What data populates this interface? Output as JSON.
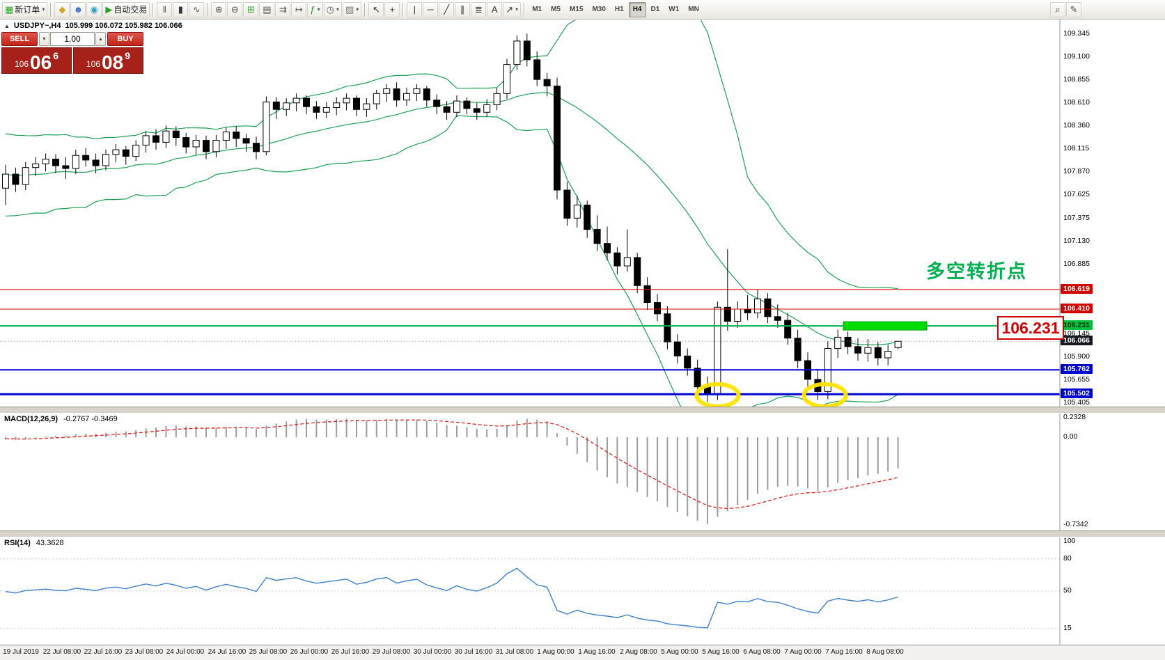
{
  "toolbar": {
    "dropdown_glyph": "▾",
    "timeframes": [
      "M1",
      "M5",
      "M15",
      "M30",
      "H1",
      "H4",
      "D1",
      "W1",
      "MN"
    ],
    "active_timeframe": "H4",
    "items": [
      {
        "type": "btn",
        "n": "new-order",
        "g": "▦",
        "c": "#2e9e2e",
        "label": "新订单",
        "dd": true
      },
      {
        "type": "sep"
      },
      {
        "type": "btn",
        "n": "metaeditor",
        "g": "◆",
        "c": "#d9a31f"
      },
      {
        "type": "btn",
        "n": "community",
        "g": "☻",
        "c": "#3b6fd6"
      },
      {
        "type": "btn",
        "n": "news",
        "g": "◉",
        "c": "#2a9fbf"
      },
      {
        "type": "btn",
        "n": "autotrading",
        "g": "▶",
        "c": "#27a327",
        "label": "自动交易"
      },
      {
        "type": "sep"
      },
      {
        "type": "btn",
        "n": "bar-chart",
        "g": "‖",
        "c": "#555"
      },
      {
        "type": "btn",
        "n": "candlestick-chart",
        "g": "▮",
        "c": "#333"
      },
      {
        "type": "btn",
        "n": "line-chart",
        "g": "∿",
        "c": "#555"
      },
      {
        "type": "sep"
      },
      {
        "type": "btn",
        "n": "zoom-in",
        "g": "⊕",
        "c": "#555"
      },
      {
        "type": "btn",
        "n": "zoom-out",
        "g": "⊖",
        "c": "#555"
      },
      {
        "type": "btn",
        "n": "grid",
        "g": "⊞",
        "c": "#3f9e3f"
      },
      {
        "type": "btn",
        "n": "tile-windows",
        "g": "▤",
        "c": "#555"
      },
      {
        "type": "btn",
        "n": "auto-scroll",
        "g": "⇉",
        "c": "#555"
      },
      {
        "type": "btn",
        "n": "chart-shift",
        "g": "↦",
        "c": "#555"
      },
      {
        "type": "btn",
        "n": "indicators",
        "g": "ƒ",
        "c": "#2e8b2e",
        "dd": true
      },
      {
        "type": "btn",
        "n": "periods",
        "g": "◷",
        "c": "#555",
        "dd": true
      },
      {
        "type": "btn",
        "n": "templates",
        "g": "▨",
        "c": "#777",
        "dd": true
      },
      {
        "type": "sep"
      },
      {
        "type": "btn",
        "n": "cursor",
        "g": "↖",
        "c": "#333"
      },
      {
        "type": "btn",
        "n": "crosshair",
        "g": "+",
        "c": "#333"
      },
      {
        "type": "sep"
      },
      {
        "type": "btn",
        "n": "vertical-line",
        "g": "|",
        "c": "#333"
      },
      {
        "type": "btn",
        "n": "horizontal-line",
        "g": "─",
        "c": "#333"
      },
      {
        "type": "btn",
        "n": "trendline",
        "g": "╱",
        "c": "#333"
      },
      {
        "type": "btn",
        "n": "equidistant-channel",
        "g": "∥",
        "c": "#333"
      },
      {
        "type": "btn",
        "n": "fibonacci",
        "g": "≣",
        "c": "#333"
      },
      {
        "type": "btn",
        "n": "text-label",
        "g": "A",
        "c": "#333"
      },
      {
        "type": "btn",
        "n": "arrows",
        "g": "↗",
        "c": "#333",
        "dd": true
      },
      {
        "type": "sep"
      },
      {
        "type": "tf"
      },
      {
        "type": "spacer"
      },
      {
        "type": "btn",
        "n": "search",
        "g": "⌕",
        "c": "#444"
      },
      {
        "type": "btn",
        "n": "edit",
        "g": "✎",
        "c": "#444"
      },
      {
        "type": "pad"
      }
    ]
  },
  "chart": {
    "collapse_glyph": "▲",
    "symbol_period": "USDJPY~,H4",
    "ohlc_text": "105.999 106.072 105.982 106.066"
  },
  "quote_panel": {
    "sell_label": "SELL",
    "buy_label": "BUY",
    "volume": "1.00",
    "spinner_down_glyph": "▼",
    "spinner_up_glyph": "▲",
    "sell_big_figure": "106",
    "sell_pips": "06",
    "sell_pip_fraction": "6",
    "buy_big_figure": "106",
    "buy_pips": "08",
    "buy_pip_fraction": "9"
  },
  "annotations": {
    "turning_point": "多空转折点",
    "price_callout": "106.231"
  },
  "overlays": {
    "hlines": [
      {
        "value": 106.619,
        "label": "106.619",
        "color": "#e10000",
        "width": 1,
        "badge_bg": "#d40000",
        "badge_fg": "#ffffff"
      },
      {
        "value": 106.41,
        "label": "106.410",
        "color": "#e10000",
        "width": 1,
        "badge_bg": "#d40000",
        "badge_fg": "#ffffff"
      },
      {
        "value": 106.231,
        "label": "106.231",
        "color": "#00b050",
        "width": 2,
        "badge_bg": "#00c040",
        "badge_fg": "#063306"
      },
      {
        "value": 105.762,
        "label": "105.762",
        "color": "#0000d0",
        "width": 2,
        "badge_bg": "#0000cc",
        "badge_fg": "#ffffff"
      },
      {
        "value": 105.502,
        "label": "105.502",
        "color": "#0000d0",
        "width": 3,
        "badge_bg": "#0000cc",
        "badge_fg": "#ffffff"
      }
    ],
    "current_price": {
      "value": 106.066,
      "label": "106.066",
      "badge_bg": "#17171f",
      "badge_fg": "#ffffff"
    },
    "highlight_rect": {
      "price": 106.231,
      "color": "#00dc00"
    },
    "ellipses": [
      {
        "index": 71,
        "price": 105.49,
        "color": "#ffe400"
      },
      {
        "index": 81.7,
        "price": 105.49,
        "color": "#ffe400"
      }
    ]
  },
  "price_axis": {
    "labels": [
      {
        "text": "109.345",
        "value": 109.345
      },
      {
        "text": "109.100",
        "value": 109.1
      },
      {
        "text": "108.855",
        "value": 108.855
      },
      {
        "text": "108.610",
        "value": 108.61
      },
      {
        "text": "108.360",
        "value": 108.36
      },
      {
        "text": "108.115",
        "value": 108.115
      },
      {
        "text": "107.870",
        "value": 107.87
      },
      {
        "text": "107.625",
        "value": 107.625
      },
      {
        "text": "107.375",
        "value": 107.375
      },
      {
        "text": "107.130",
        "value": 107.13
      },
      {
        "text": "106.885",
        "value": 106.885
      },
      {
        "text": "106.145",
        "value": 106.145
      },
      {
        "text": "105.900",
        "value": 105.9
      },
      {
        "text": "105.655",
        "value": 105.655
      },
      {
        "text": "105.405",
        "value": 105.405
      }
    ]
  },
  "time_axis": {
    "labels": [
      "19 Jul 2019",
      "22 Jul 08:00",
      "22 Jul 16:00",
      "23 Jul 08:00",
      "24 Jul 00:00",
      "24 Jul 16:00",
      "25 Jul 08:00",
      "26 Jul 00:00",
      "26 Jul 16:00",
      "29 Jul 08:00",
      "30 Jul 00:00",
      "30 Jul 16:00",
      "31 Jul 08:00",
      "1 Aug 00:00",
      "1 Aug 16:00",
      "2 Aug 08:00",
      "5 Aug 00:00",
      "5 Aug 16:00",
      "6 Aug 08:00",
      "7 Aug 00:00",
      "7 Aug 16:00",
      "8 Aug 08:00"
    ]
  },
  "macd": {
    "label": "MACD(12,26,9)",
    "values_text": "-0.2767 -0.3469",
    "axis_labels": [
      "0.2328",
      "0.00",
      "-0.7342"
    ]
  },
  "rsi": {
    "label": "RSI(14)",
    "value_text": "43.3628",
    "axis_labels": [
      {
        "text": "100",
        "value": 100
      },
      {
        "text": "80",
        "value": 80
      },
      {
        "text": "50",
        "value": 50
      },
      {
        "text": "15",
        "value": 15
      }
    ],
    "levels": [
      80,
      50,
      15
    ]
  },
  "chart_data": {
    "type": "candlestick",
    "symbol": "USDJPY",
    "timeframe": "H4",
    "ohlc_current": {
      "open": 105.999,
      "high": 106.072,
      "low": 105.982,
      "close": 106.066
    },
    "bid": 106.066,
    "ask": 106.089,
    "price_range_visible": [
      105.37,
      109.47
    ],
    "indicators": {
      "bollinger_period": 20,
      "bollinger_deviation": 2,
      "macd": [
        12,
        26,
        9
      ],
      "rsi_period": 14
    },
    "pre_closes": [
      107.9,
      107.55,
      107.8,
      108.2,
      108.0,
      107.5,
      107.7,
      108.1,
      107.85,
      107.6,
      108.05,
      108.25,
      107.8,
      107.55,
      107.9,
      107.72
    ],
    "candles": [
      [
        107.7,
        107.95,
        107.52,
        107.85
      ],
      [
        107.85,
        107.92,
        107.66,
        107.74
      ],
      [
        107.74,
        107.98,
        107.68,
        107.92
      ],
      [
        107.92,
        108.03,
        107.83,
        107.96
      ],
      [
        107.96,
        108.07,
        107.88,
        108.01
      ],
      [
        108.01,
        108.06,
        107.86,
        107.94
      ],
      [
        107.94,
        108.03,
        107.8,
        107.91
      ],
      [
        107.91,
        108.11,
        107.85,
        108.05
      ],
      [
        108.05,
        108.13,
        107.93,
        108.0
      ],
      [
        108.0,
        108.07,
        107.86,
        107.94
      ],
      [
        107.94,
        108.11,
        107.89,
        108.06
      ],
      [
        108.06,
        108.17,
        107.98,
        108.11
      ],
      [
        108.11,
        108.15,
        107.95,
        108.04
      ],
      [
        108.04,
        108.21,
        107.99,
        108.16
      ],
      [
        108.16,
        108.31,
        108.08,
        108.26
      ],
      [
        108.26,
        108.33,
        108.11,
        108.19
      ],
      [
        108.19,
        108.37,
        108.13,
        108.31
      ],
      [
        108.31,
        108.36,
        108.15,
        108.24
      ],
      [
        108.24,
        108.29,
        108.07,
        108.14
      ],
      [
        108.14,
        108.27,
        108.06,
        108.21
      ],
      [
        108.21,
        108.26,
        108.01,
        108.09
      ],
      [
        108.09,
        108.27,
        108.03,
        108.21
      ],
      [
        108.21,
        108.35,
        108.12,
        108.3
      ],
      [
        108.3,
        108.36,
        108.14,
        108.23
      ],
      [
        108.23,
        108.28,
        108.09,
        108.18
      ],
      [
        108.18,
        108.25,
        108.01,
        108.09
      ],
      [
        108.09,
        108.68,
        108.05,
        108.62
      ],
      [
        108.62,
        108.67,
        108.44,
        108.54
      ],
      [
        108.54,
        108.66,
        108.47,
        108.61
      ],
      [
        108.61,
        108.71,
        108.52,
        108.66
      ],
      [
        108.66,
        108.69,
        108.49,
        108.57
      ],
      [
        108.57,
        108.63,
        108.44,
        108.51
      ],
      [
        108.51,
        108.62,
        108.45,
        108.56
      ],
      [
        108.56,
        108.67,
        108.48,
        108.61
      ],
      [
        108.61,
        108.71,
        108.53,
        108.66
      ],
      [
        108.66,
        108.69,
        108.47,
        108.54
      ],
      [
        108.54,
        108.66,
        108.46,
        108.6
      ],
      [
        108.6,
        108.75,
        108.54,
        108.71
      ],
      [
        108.71,
        108.81,
        108.62,
        108.76
      ],
      [
        108.76,
        108.83,
        108.57,
        108.64
      ],
      [
        108.64,
        108.77,
        108.58,
        108.71
      ],
      [
        108.71,
        108.81,
        108.63,
        108.76
      ],
      [
        108.76,
        108.79,
        108.57,
        108.64
      ],
      [
        108.64,
        108.7,
        108.49,
        108.57
      ],
      [
        108.57,
        108.63,
        108.43,
        108.51
      ],
      [
        108.51,
        108.69,
        108.46,
        108.63
      ],
      [
        108.63,
        108.67,
        108.49,
        108.55
      ],
      [
        108.55,
        108.61,
        108.43,
        108.51
      ],
      [
        108.51,
        108.65,
        108.46,
        108.59
      ],
      [
        108.59,
        108.77,
        108.53,
        108.71
      ],
      [
        108.71,
        109.08,
        108.65,
        109.02
      ],
      [
        109.02,
        109.33,
        108.96,
        109.27
      ],
      [
        109.27,
        109.35,
        109.0,
        109.07
      ],
      [
        109.07,
        109.16,
        108.79,
        108.86
      ],
      [
        108.86,
        108.93,
        108.68,
        108.79
      ],
      [
        108.79,
        108.88,
        107.58,
        107.68
      ],
      [
        107.68,
        107.77,
        107.3,
        107.38
      ],
      [
        107.38,
        107.62,
        107.28,
        107.52
      ],
      [
        107.52,
        107.57,
        107.17,
        107.26
      ],
      [
        107.26,
        107.41,
        107.03,
        107.11
      ],
      [
        107.11,
        107.29,
        106.93,
        107.01
      ],
      [
        107.01,
        107.07,
        106.78,
        106.87
      ],
      [
        106.87,
        107.26,
        106.81,
        106.96
      ],
      [
        106.96,
        107.01,
        106.58,
        106.66
      ],
      [
        106.66,
        106.75,
        106.4,
        106.48
      ],
      [
        106.48,
        106.57,
        106.28,
        106.36
      ],
      [
        106.36,
        106.44,
        105.98,
        106.06
      ],
      [
        106.06,
        106.14,
        105.83,
        105.91
      ],
      [
        105.91,
        105.99,
        105.7,
        105.78
      ],
      [
        105.78,
        105.87,
        105.5,
        105.58
      ],
      [
        105.58,
        105.69,
        105.42,
        105.51
      ],
      [
        105.51,
        106.49,
        105.44,
        106.43
      ],
      [
        106.43,
        107.05,
        106.18,
        106.28
      ],
      [
        106.28,
        106.49,
        106.21,
        106.41
      ],
      [
        106.41,
        106.56,
        106.29,
        106.37
      ],
      [
        106.37,
        106.62,
        106.31,
        106.52
      ],
      [
        106.52,
        106.58,
        106.26,
        106.33
      ],
      [
        106.33,
        106.46,
        106.21,
        106.29
      ],
      [
        106.29,
        106.37,
        106.03,
        106.1
      ],
      [
        106.1,
        106.19,
        105.78,
        105.86
      ],
      [
        105.86,
        105.95,
        105.58,
        105.66
      ],
      [
        105.66,
        105.77,
        105.44,
        105.53
      ],
      [
        105.53,
        106.07,
        105.45,
        105.99
      ],
      [
        105.99,
        106.19,
        105.89,
        106.11
      ],
      [
        106.11,
        106.17,
        105.93,
        106.01
      ],
      [
        106.01,
        106.1,
        105.86,
        105.94
      ],
      [
        105.94,
        106.09,
        105.85,
        106.0
      ],
      [
        106.0,
        106.06,
        105.81,
        105.89
      ],
      [
        105.89,
        106.03,
        105.81,
        105.96
      ],
      [
        105.999,
        106.072,
        105.982,
        106.066
      ]
    ]
  }
}
